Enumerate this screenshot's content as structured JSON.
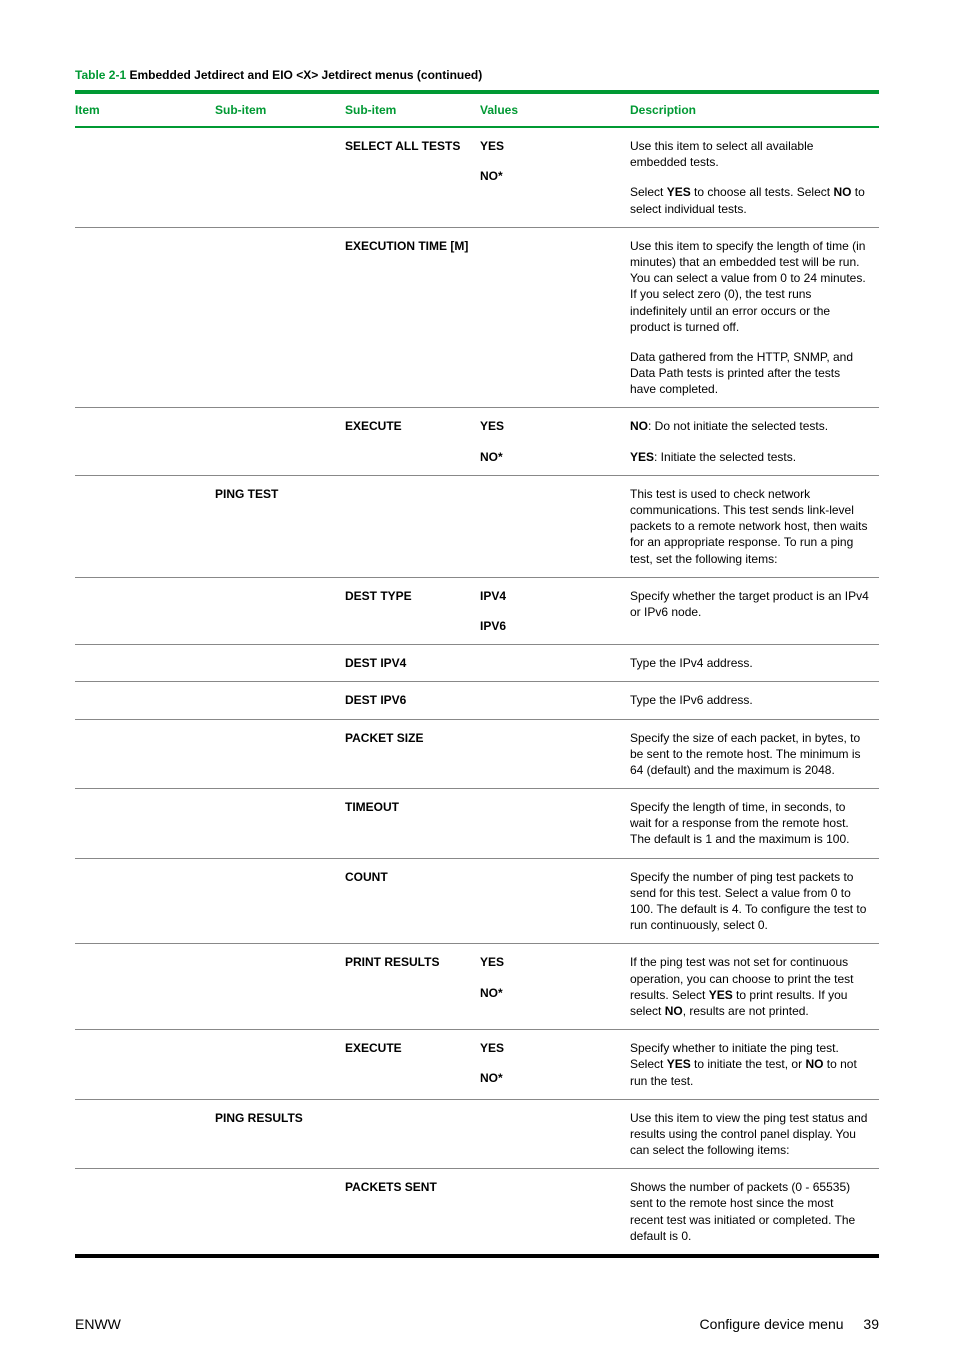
{
  "caption": {
    "prefix": "Table 2-1",
    "text": "Embedded Jetdirect and EIO <X> Jetdirect menus (continued)"
  },
  "headers": {
    "item": "Item",
    "sub1": "Sub-item",
    "sub2": "Sub-item",
    "values": "Values",
    "desc": "Description"
  },
  "rows": {
    "selectAll": {
      "sub2": "SELECT ALL TESTS",
      "val1": "YES",
      "val2": "NO",
      "desc1": "Use this item to select all available embedded tests.",
      "desc2a": "Select ",
      "desc2b": "YES",
      "desc2c": " to choose all tests. Select ",
      "desc2d": "NO",
      "desc2e": " to select individual tests."
    },
    "execTime": {
      "sub2": "EXECUTION TIME [M]",
      "desc1": "Use this item to specify the length of time (in minutes) that an embedded test will be run. You can select a value from 0 to 24 minutes. If you select zero (0), the test runs indefinitely until an error occurs or the product is turned off.",
      "desc2": "Data gathered from the HTTP, SNMP, and Data Path tests is printed after the tests have completed."
    },
    "execute1": {
      "sub2": "EXECUTE",
      "val1": "YES",
      "val2": "NO",
      "desc1a": "NO",
      "desc1b": ": Do not initiate the selected tests.",
      "desc2a": "YES",
      "desc2b": ": Initiate the selected tests."
    },
    "pingTest": {
      "sub1": "PING TEST",
      "desc": "This test is used to check network communications. This test sends link-level packets to a remote network host, then waits for an appropriate response. To run a ping test, set the following items:"
    },
    "destType": {
      "sub2": "DEST TYPE",
      "val1": "IPV4",
      "val2": "IPV6",
      "desc": "Specify whether the target product is an IPv4 or IPv6 node."
    },
    "destIpv4": {
      "sub2": "DEST IPV4",
      "desc": "Type the IPv4 address."
    },
    "destIpv6": {
      "sub2": "DEST IPV6",
      "desc": "Type the IPv6 address."
    },
    "packetSize": {
      "sub2": "PACKET SIZE",
      "desc": "Specify the size of each packet, in bytes, to be sent to the remote host. The minimum is 64 (default) and the maximum is 2048."
    },
    "timeout": {
      "sub2": "TIMEOUT",
      "desc": "Specify the length of time, in seconds, to wait for a response from the remote host. The default is 1 and the maximum is 100."
    },
    "count": {
      "sub2": "COUNT",
      "desc": "Specify the number of ping test packets to send for this test. Select a value from 0 to 100. The default is 4. To configure the test to run continuously, select 0."
    },
    "printResults": {
      "sub2": "PRINT RESULTS",
      "val1": "YES",
      "val2": "NO",
      "desc_a": "If the ping test was not set for continuous operation, you can choose to print the test results. Select ",
      "desc_b": "YES",
      "desc_c": " to print results. If you select ",
      "desc_d": "NO",
      "desc_e": ", results are not printed."
    },
    "execute2": {
      "sub2": "EXECUTE",
      "val1": "YES",
      "val2": "NO",
      "desc_a": "Specify whether to initiate the ping test. Select ",
      "desc_b": "YES",
      "desc_c": " to initiate the test, or ",
      "desc_d": "NO",
      "desc_e": " to not run the test."
    },
    "pingResults": {
      "sub1": "PING RESULTS",
      "desc": "Use this item to view the ping test status and results using the control panel display. You can select the following items:"
    },
    "packetsSent": {
      "sub2": "PACKETS SENT",
      "desc": "Shows the number of packets (0 - 65535) sent to the remote host since the most recent test was initiated or completed. The default is 0."
    }
  },
  "footer": {
    "left": "ENWW",
    "rightText": "Configure device menu",
    "pageNum": "39"
  }
}
